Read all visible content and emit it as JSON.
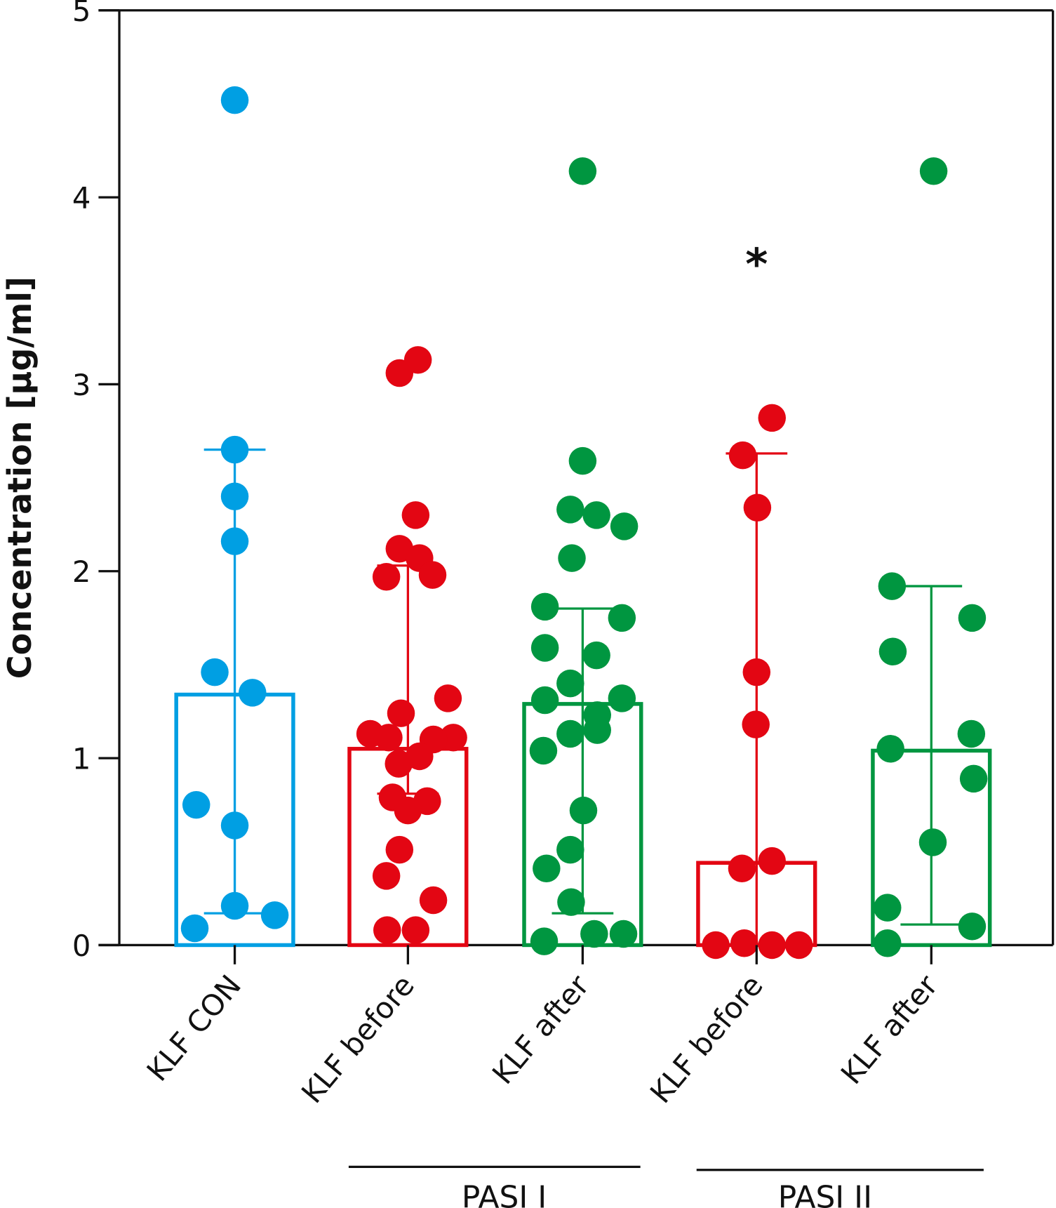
{
  "chart_data": {
    "type": "bar",
    "title": "",
    "xlabel": "",
    "ylabel": "Concentration [µg/ml]",
    "ylim": [
      0,
      5
    ],
    "yticks": [
      "0",
      "1",
      "2",
      "3",
      "4",
      "5"
    ],
    "grid": false,
    "categories": [
      "KLF CON",
      "KLF before",
      "KLF after",
      "KLF before",
      "KLF after"
    ],
    "group_labels": [
      {
        "label": "PASI I",
        "categories": [
          1,
          2
        ]
      },
      {
        "label": "PASI II",
        "categories": [
          3,
          4
        ]
      }
    ],
    "annotation": {
      "text": "*",
      "category": 3,
      "y": 3.67
    },
    "colors": [
      "#009fe3",
      "#e30613",
      "#009640",
      "#e30613",
      "#009640"
    ],
    "bars": [
      1.34,
      1.05,
      1.29,
      0.44,
      1.04
    ],
    "error_bars": [
      {
        "low": 0.17,
        "high": 2.65
      },
      {
        "low": 0.81,
        "high": 2.03
      },
      {
        "low": 0.17,
        "high": 1.8
      },
      {
        "low": 0.0,
        "high": 2.63
      },
      {
        "low": 0.11,
        "high": 1.92
      }
    ],
    "points": [
      [
        4.52,
        2.65,
        2.4,
        2.16,
        1.46,
        1.35,
        0.75,
        0.64,
        0.21,
        0.16,
        0.09
      ],
      [
        3.06,
        3.13,
        2.3,
        2.12,
        2.07,
        1.97,
        1.98,
        1.24,
        1.32,
        1.13,
        1.11,
        1.11,
        1.1,
        0.97,
        1.01,
        0.79,
        0.77,
        0.72,
        0.51,
        0.37,
        0.24,
        0.08,
        0.08
      ],
      [
        4.14,
        2.59,
        2.33,
        2.3,
        2.24,
        2.07,
        1.81,
        1.75,
        1.59,
        1.55,
        1.4,
        1.31,
        1.32,
        1.23,
        1.15,
        1.13,
        1.04,
        0.72,
        0.51,
        0.41,
        0.23,
        0.02,
        0.06,
        0.06
      ],
      [
        2.82,
        2.62,
        2.34,
        1.46,
        1.18,
        0.45,
        0.41,
        0.0,
        0.01,
        0.0,
        0.0
      ],
      [
        4.14,
        1.92,
        1.75,
        1.57,
        1.13,
        1.05,
        0.89,
        0.55,
        0.2,
        0.1,
        0.01
      ]
    ]
  }
}
